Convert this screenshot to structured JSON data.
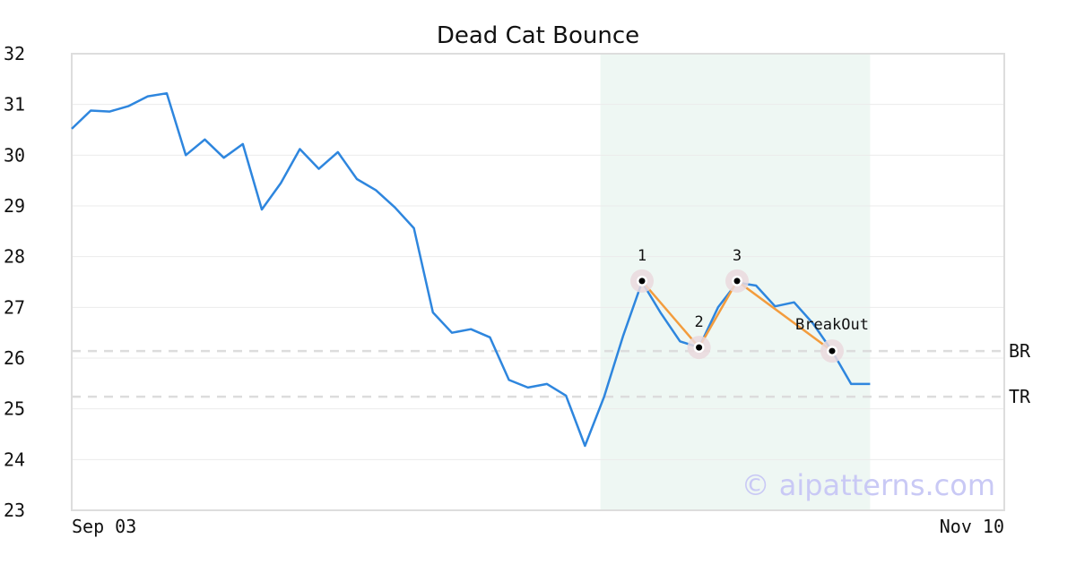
{
  "chart_data": {
    "type": "line",
    "title": "Dead Cat Bounce",
    "xlabel": "",
    "ylabel": "",
    "ylim": [
      23,
      32
    ],
    "yticks": [
      23,
      24,
      25,
      26,
      27,
      28,
      29,
      30,
      31,
      32
    ],
    "x_tick_labels": [
      "Sep 03",
      "Nov 10"
    ],
    "grid": "horizontal",
    "series": [
      {
        "color": "#2e86de",
        "values": [
          30.52,
          30.88,
          30.86,
          30.97,
          31.16,
          31.22,
          30.0,
          30.31,
          29.95,
          30.22,
          28.93,
          29.45,
          30.12,
          29.73,
          30.06,
          29.53,
          29.31,
          28.97,
          28.56,
          26.9,
          26.5,
          26.57,
          26.41,
          25.57,
          25.42,
          25.49,
          25.26,
          24.27,
          25.23,
          26.43,
          27.5,
          26.88,
          26.33,
          26.21,
          27.0,
          27.49,
          27.43,
          27.02,
          27.1,
          26.68,
          26.14,
          25.49,
          25.49
        ]
      }
    ],
    "pattern": {
      "color": "#f39c3d",
      "highlight_start_index": 28,
      "highlight_end_index": 42,
      "highlight_color": "#eef7f3",
      "points": [
        {
          "label": "1",
          "index": 30,
          "value": 27.52
        },
        {
          "label": "2",
          "index": 33,
          "value": 26.21
        },
        {
          "label": "3",
          "index": 35,
          "value": 27.52
        },
        {
          "label": "BreakOut",
          "index": 40,
          "value": 26.14
        }
      ]
    },
    "levels": [
      {
        "label": "BR",
        "value": 26.14
      },
      {
        "label": "TR",
        "value": 25.24
      }
    ],
    "watermark": "© aipatterns.com"
  }
}
